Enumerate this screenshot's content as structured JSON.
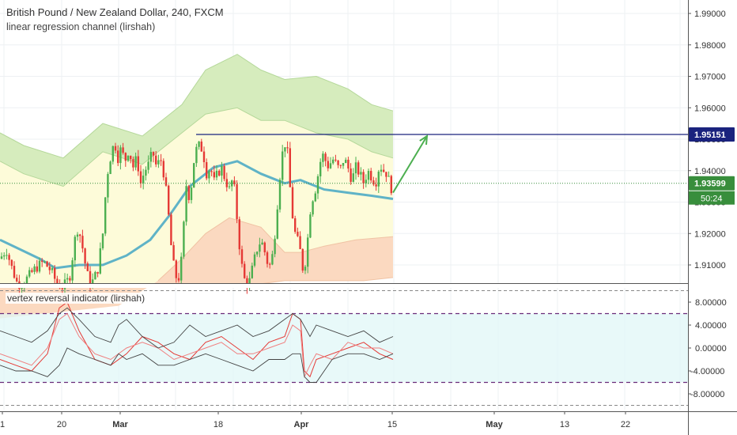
{
  "header": {
    "title": "British Pound / New Zealand Dollar, 240, FXCM",
    "indicator_name": "linear regression channel (lirshah)",
    "oscillator_name": "vertex reversal indicator (lirshah)"
  },
  "colors": {
    "bull": "#4caf50",
    "bear": "#e53935",
    "resistance": "#1a237e",
    "price_line": "#388e3c",
    "midline": "#5fb3c7",
    "band_green": "#d6ecbd",
    "band_yellow": "#fdfbd9",
    "band_orange": "#fbd9c0",
    "osc_bg": "#e0f7f7",
    "osc_ref": "#6a2c7a"
  },
  "chart_data": [
    {
      "type": "candlestick",
      "title": "British Pound / New Zealand Dollar, 240, FXCM",
      "x_ticks": [
        "1",
        "20",
        "Mar",
        "18",
        "Apr",
        "15",
        "May",
        "13",
        "22"
      ],
      "y_ticks": [
        "1.99000",
        "1.98000",
        "1.97000",
        "1.96000",
        "1.95000",
        "1.94000",
        "1.93000",
        "1.92000",
        "1.91000"
      ],
      "ylim": [
        1.903,
        1.993
      ],
      "grid": true,
      "price_path": [
        [
          0,
          1.912
        ],
        [
          8,
          1.915
        ],
        [
          15,
          1.909
        ],
        [
          22,
          1.904
        ],
        [
          28,
          1.904
        ],
        [
          35,
          1.906
        ],
        [
          45,
          1.909
        ],
        [
          55,
          1.911
        ],
        [
          65,
          1.908
        ],
        [
          72,
          1.904
        ],
        [
          80,
          1.903
        ],
        [
          88,
          1.906
        ],
        [
          93,
          1.915
        ],
        [
          97,
          1.922
        ],
        [
          102,
          1.919
        ],
        [
          108,
          1.91
        ],
        [
          113,
          1.904
        ],
        [
          118,
          1.905
        ],
        [
          124,
          1.909
        ],
        [
          130,
          1.92
        ],
        [
          135,
          1.938
        ],
        [
          141,
          1.946
        ],
        [
          145,
          1.949
        ],
        [
          149,
          1.944
        ],
        [
          153,
          1.947
        ],
        [
          158,
          1.943
        ],
        [
          163,
          1.947
        ],
        [
          168,
          1.941
        ],
        [
          173,
          1.944
        ],
        [
          178,
          1.936
        ],
        [
          183,
          1.94
        ],
        [
          188,
          1.942
        ],
        [
          193,
          1.946
        ],
        [
          198,
          1.941
        ],
        [
          203,
          1.944
        ],
        [
          208,
          1.938
        ],
        [
          212,
          1.929
        ],
        [
          216,
          1.917
        ],
        [
          220,
          1.909
        ],
        [
          224,
          1.905
        ],
        [
          228,
          1.907
        ],
        [
          232,
          1.921
        ],
        [
          236,
          1.937
        ],
        [
          240,
          1.93
        ],
        [
          244,
          1.941
        ],
        [
          247,
          1.946
        ],
        [
          251,
          1.948
        ],
        [
          255,
          1.947
        ],
        [
          258,
          1.944
        ],
        [
          262,
          1.938
        ],
        [
          266,
          1.942
        ],
        [
          270,
          1.936
        ],
        [
          275,
          1.939
        ],
        [
          280,
          1.941
        ],
        [
          285,
          1.937
        ],
        [
          290,
          1.934
        ],
        [
          295,
          1.938
        ],
        [
          300,
          1.924
        ],
        [
          304,
          1.913
        ],
        [
          308,
          1.906
        ],
        [
          312,
          1.904
        ],
        [
          316,
          1.905
        ],
        [
          320,
          1.91
        ],
        [
          325,
          1.915
        ],
        [
          330,
          1.918
        ],
        [
          335,
          1.914
        ],
        [
          340,
          1.909
        ],
        [
          344,
          1.912
        ],
        [
          348,
          1.921
        ],
        [
          352,
          1.933
        ],
        [
          356,
          1.944
        ],
        [
          360,
          1.949
        ],
        [
          364,
          1.945
        ],
        [
          368,
          1.93
        ],
        [
          372,
          1.921
        ],
        [
          376,
          1.918
        ],
        [
          380,
          1.914
        ],
        [
          384,
          1.907
        ],
        [
          388,
          1.915
        ],
        [
          392,
          1.927
        ],
        [
          396,
          1.932
        ],
        [
          400,
          1.935
        ],
        [
          404,
          1.942
        ],
        [
          408,
          1.945
        ],
        [
          412,
          1.943
        ],
        [
          416,
          1.941
        ],
        [
          420,
          1.944
        ],
        [
          425,
          1.942
        ],
        [
          430,
          1.94
        ],
        [
          435,
          1.944
        ],
        [
          440,
          1.941
        ],
        [
          445,
          1.937
        ],
        [
          450,
          1.941
        ],
        [
          455,
          1.939
        ],
        [
          460,
          1.936
        ],
        [
          465,
          1.94
        ],
        [
          470,
          1.938
        ],
        [
          475,
          1.936
        ],
        [
          480,
          1.942
        ],
        [
          485,
          1.94
        ],
        [
          490,
          1.939
        ],
        [
          494,
          1.934
        ],
        [
          497,
          1.936
        ]
      ],
      "regression_bands": {
        "top": [
          [
            0,
            1.952
          ],
          [
            30,
            1.948
          ],
          [
            80,
            1.944
          ],
          [
            130,
            1.955
          ],
          [
            180,
            1.951
          ],
          [
            230,
            1.961
          ],
          [
            260,
            1.972
          ],
          [
            300,
            1.977
          ],
          [
            330,
            1.972
          ],
          [
            360,
            1.969
          ],
          [
            400,
            1.97
          ],
          [
            440,
            1.966
          ],
          [
            470,
            1.961
          ],
          [
            497,
            1.959
          ]
        ],
        "upper": [
          [
            0,
            1.943
          ],
          [
            30,
            1.939
          ],
          [
            80,
            1.935
          ],
          [
            130,
            1.946
          ],
          [
            180,
            1.942
          ],
          [
            230,
            1.952
          ],
          [
            260,
            1.958
          ],
          [
            300,
            1.96
          ],
          [
            330,
            1.956
          ],
          [
            360,
            1.956
          ],
          [
            400,
            1.952
          ],
          [
            440,
            1.95
          ],
          [
            470,
            1.946
          ],
          [
            497,
            1.944
          ]
        ],
        "mid": [
          [
            0,
            1.918
          ],
          [
            25,
            1.915
          ],
          [
            50,
            1.912
          ],
          [
            70,
            1.909
          ],
          [
            100,
            1.91
          ],
          [
            130,
            1.91
          ],
          [
            160,
            1.913
          ],
          [
            190,
            1.918
          ],
          [
            215,
            1.926
          ],
          [
            240,
            1.935
          ],
          [
            270,
            1.941
          ],
          [
            300,
            1.943
          ],
          [
            330,
            1.939
          ],
          [
            360,
            1.936
          ],
          [
            380,
            1.937
          ],
          [
            410,
            1.934
          ],
          [
            440,
            1.933
          ],
          [
            470,
            1.932
          ],
          [
            497,
            1.931
          ]
        ],
        "lower": [
          [
            200,
            1.905
          ],
          [
            230,
            1.912
          ],
          [
            260,
            1.92
          ],
          [
            290,
            1.925
          ],
          [
            330,
            1.922
          ],
          [
            360,
            1.914
          ],
          [
            380,
            1.914
          ],
          [
            410,
            1.916
          ],
          [
            450,
            1.918
          ],
          [
            497,
            1.919
          ]
        ],
        "bottom": [
          [
            300,
            1.903
          ],
          [
            360,
            1.905
          ],
          [
            420,
            1.905
          ],
          [
            460,
            1.905
          ],
          [
            497,
            1.906
          ]
        ]
      },
      "resistance_level": 1.95151,
      "resistance_label": "1.95151",
      "current_price": 1.93599,
      "current_price_label": "1.93599",
      "countdown_label": "50:24",
      "arrow": {
        "from": [
          497,
          1.933
        ],
        "to": [
          540,
          1.951
        ]
      }
    },
    {
      "type": "line",
      "title": "vertex reversal indicator (lirshah)",
      "y_ticks": [
        "8.00000",
        "4.00000",
        "0.00000",
        "-4.00000",
        "-8.00000"
      ],
      "ylim": [
        -11,
        10.5
      ],
      "reference_levels": [
        6,
        -6
      ],
      "series": [
        {
          "values": [
            [
              0,
              -2
            ],
            [
              20,
              -3
            ],
            [
              40,
              -4
            ],
            [
              60,
              -1
            ],
            [
              75,
              7
            ],
            [
              85,
              8
            ],
            [
              100,
              3
            ],
            [
              120,
              -2
            ],
            [
              140,
              -3
            ],
            [
              160,
              -1
            ],
            [
              180,
              2
            ],
            [
              200,
              1
            ],
            [
              220,
              -1
            ],
            [
              240,
              -2
            ],
            [
              260,
              1
            ],
            [
              280,
              2
            ],
            [
              300,
              0
            ],
            [
              320,
              -2
            ],
            [
              340,
              1
            ],
            [
              360,
              2
            ],
            [
              370,
              6
            ],
            [
              380,
              5
            ],
            [
              385,
              -4
            ],
            [
              392,
              -5
            ],
            [
              400,
              -2
            ],
            [
              420,
              -1
            ],
            [
              440,
              0
            ],
            [
              460,
              1
            ],
            [
              480,
              -1
            ],
            [
              497,
              -2
            ]
          ]
        },
        {
          "values": [
            [
              0,
              -1
            ],
            [
              20,
              -2
            ],
            [
              40,
              -3
            ],
            [
              60,
              0
            ],
            [
              75,
              5
            ],
            [
              85,
              6
            ],
            [
              100,
              2
            ],
            [
              120,
              -1
            ],
            [
              140,
              -2
            ],
            [
              160,
              0
            ],
            [
              180,
              1
            ],
            [
              200,
              0
            ],
            [
              220,
              -2
            ],
            [
              240,
              -1
            ],
            [
              260,
              0
            ],
            [
              280,
              1
            ],
            [
              300,
              -1
            ],
            [
              320,
              -1
            ],
            [
              340,
              0
            ],
            [
              360,
              1
            ],
            [
              370,
              4
            ],
            [
              380,
              3
            ],
            [
              385,
              -5
            ],
            [
              392,
              -3
            ],
            [
              400,
              -1
            ],
            [
              420,
              -2
            ],
            [
              440,
              1
            ],
            [
              460,
              0
            ],
            [
              480,
              0
            ],
            [
              497,
              -1
            ]
          ]
        },
        {
          "values": [
            [
              0,
              3
            ],
            [
              20,
              2
            ],
            [
              40,
              1
            ],
            [
              60,
              3
            ],
            [
              75,
              6
            ],
            [
              85,
              7
            ],
            [
              100,
              5
            ],
            [
              120,
              2
            ],
            [
              140,
              1
            ],
            [
              150,
              4
            ],
            [
              160,
              5
            ],
            [
              180,
              2
            ],
            [
              200,
              0
            ],
            [
              220,
              1
            ],
            [
              240,
              4
            ],
            [
              260,
              2
            ],
            [
              280,
              3
            ],
            [
              300,
              4
            ],
            [
              320,
              2
            ],
            [
              340,
              3
            ],
            [
              360,
              5
            ],
            [
              370,
              6
            ],
            [
              380,
              5
            ],
            [
              392,
              2
            ],
            [
              400,
              4
            ],
            [
              420,
              3
            ],
            [
              440,
              2
            ],
            [
              460,
              3
            ],
            [
              480,
              1
            ],
            [
              497,
              2
            ]
          ]
        },
        {
          "values": [
            [
              0,
              -3
            ],
            [
              20,
              -4
            ],
            [
              40,
              -4
            ],
            [
              60,
              -5
            ],
            [
              75,
              -3
            ],
            [
              85,
              0
            ],
            [
              100,
              -1
            ],
            [
              120,
              -2
            ],
            [
              140,
              -3
            ],
            [
              150,
              -1
            ],
            [
              160,
              -2
            ],
            [
              180,
              -1
            ],
            [
              200,
              -3
            ],
            [
              220,
              -3
            ],
            [
              240,
              -2
            ],
            [
              260,
              -1
            ],
            [
              280,
              -2
            ],
            [
              300,
              -3
            ],
            [
              320,
              -4
            ],
            [
              340,
              -2
            ],
            [
              360,
              -2
            ],
            [
              370,
              -1
            ],
            [
              380,
              -1
            ],
            [
              385,
              -5
            ],
            [
              392,
              -6
            ],
            [
              400,
              -6
            ],
            [
              420,
              -2
            ],
            [
              440,
              -1
            ],
            [
              460,
              -1
            ],
            [
              480,
              -2
            ],
            [
              497,
              -1
            ]
          ]
        }
      ]
    }
  ]
}
